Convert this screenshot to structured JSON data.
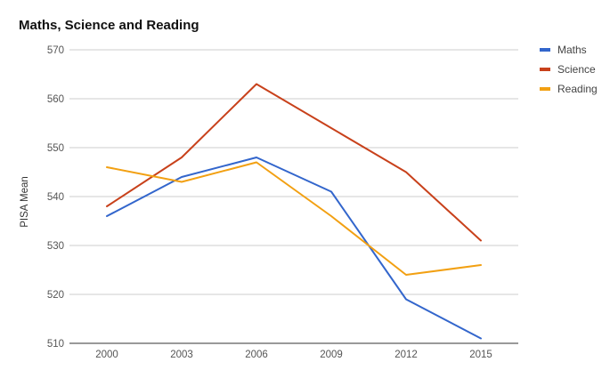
{
  "chart_data": {
    "type": "line",
    "title": "Maths, Science and Reading",
    "xlabel": "",
    "ylabel": "PISA Mean",
    "x": [
      "2000",
      "2003",
      "2006",
      "2009",
      "2012",
      "2015"
    ],
    "ylim": [
      510,
      570
    ],
    "yticks": [
      510,
      520,
      530,
      540,
      550,
      560,
      570
    ],
    "grid": true,
    "legend_position": "right",
    "series": [
      {
        "name": "Maths",
        "color": "#3366cc",
        "values": [
          536,
          544,
          548,
          541,
          519,
          511
        ]
      },
      {
        "name": "Science",
        "color": "#c8411b",
        "values": [
          538,
          548,
          563,
          554,
          545,
          531
        ]
      },
      {
        "name": "Reading",
        "color": "#f2a012",
        "values": [
          546,
          543,
          547,
          536,
          524,
          526
        ]
      }
    ]
  }
}
